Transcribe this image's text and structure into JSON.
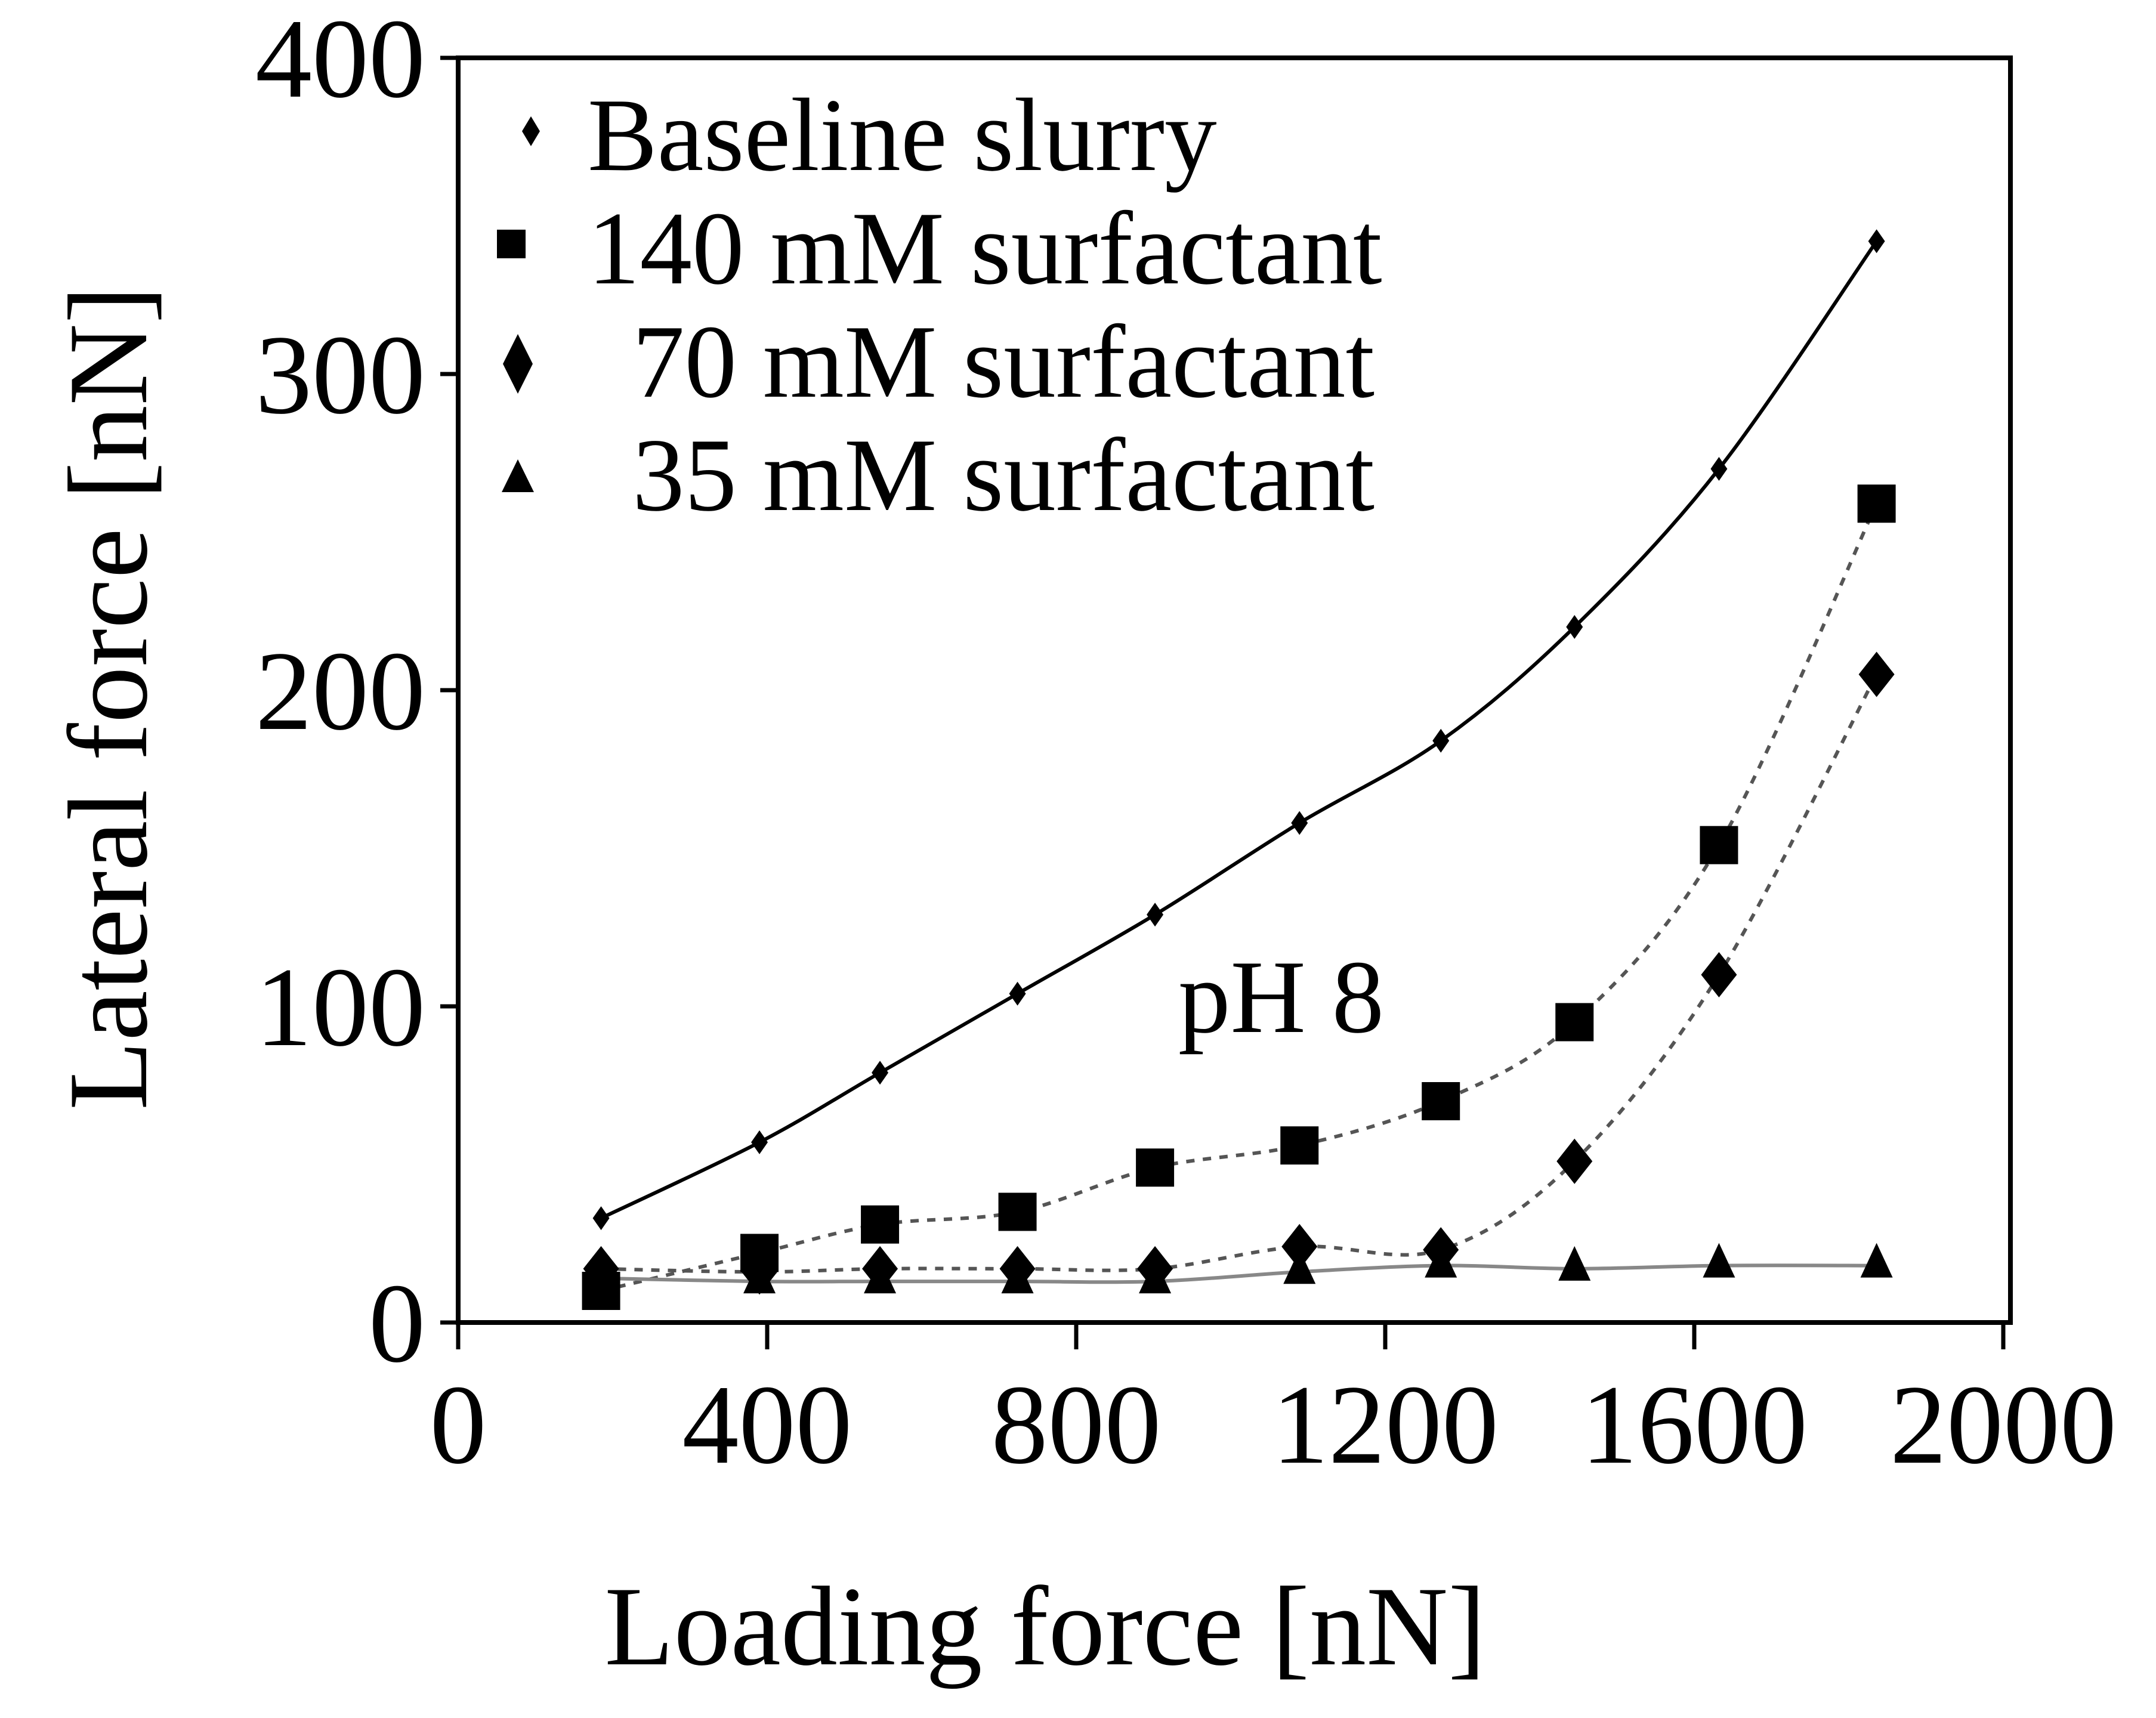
{
  "chart_data": {
    "type": "line",
    "title": "",
    "xlabel": "Loading force [nN]",
    "ylabel": "Lateral force [nN]",
    "xlim": [
      0,
      2000
    ],
    "ylim": [
      0,
      400
    ],
    "xticks": [
      0,
      400,
      800,
      1200,
      1600,
      2000
    ],
    "yticks": [
      0,
      100,
      200,
      300,
      400
    ],
    "grid": false,
    "legend_position": "upper-left inside",
    "annotation": "pH 8",
    "x": [
      185,
      390,
      546,
      724,
      902,
      1089,
      1272,
      1445,
      1632,
      1836
    ],
    "series": [
      {
        "name": "Baseline slurry",
        "marker": "small-diamond",
        "line": "solid",
        "values": [
          33,
          57,
          79,
          104,
          129,
          158,
          184,
          220,
          270,
          342
        ]
      },
      {
        "name": "140 mM surfactant",
        "marker": "square",
        "line": "dashed",
        "values": [
          10,
          22,
          31,
          35,
          49,
          56,
          70,
          95,
          151,
          259
        ]
      },
      {
        "name": "70 mM surfactant",
        "marker": "diamond",
        "line": "dashed",
        "values": [
          17,
          16,
          17,
          17,
          17,
          24,
          23,
          51,
          110,
          205
        ]
      },
      {
        "name": "35 mM surfactant",
        "marker": "triangle",
        "line": "solid-gray",
        "values": [
          14,
          13,
          13,
          13,
          13,
          16,
          18,
          17,
          18,
          18
        ]
      }
    ]
  },
  "labels": {
    "xlabel": "Loading force [nN]",
    "ylabel": "Lateral force [nN]",
    "annotation": "pH 8",
    "xticks": [
      "0",
      "400",
      "800",
      "1200",
      "1600",
      "2000"
    ],
    "yticks": [
      "0",
      "100",
      "200",
      "300",
      "400"
    ],
    "legend": [
      "Baseline slurry",
      "140 mM surfactant",
      "70 mM surfactant",
      "35 mM surfactant"
    ]
  }
}
